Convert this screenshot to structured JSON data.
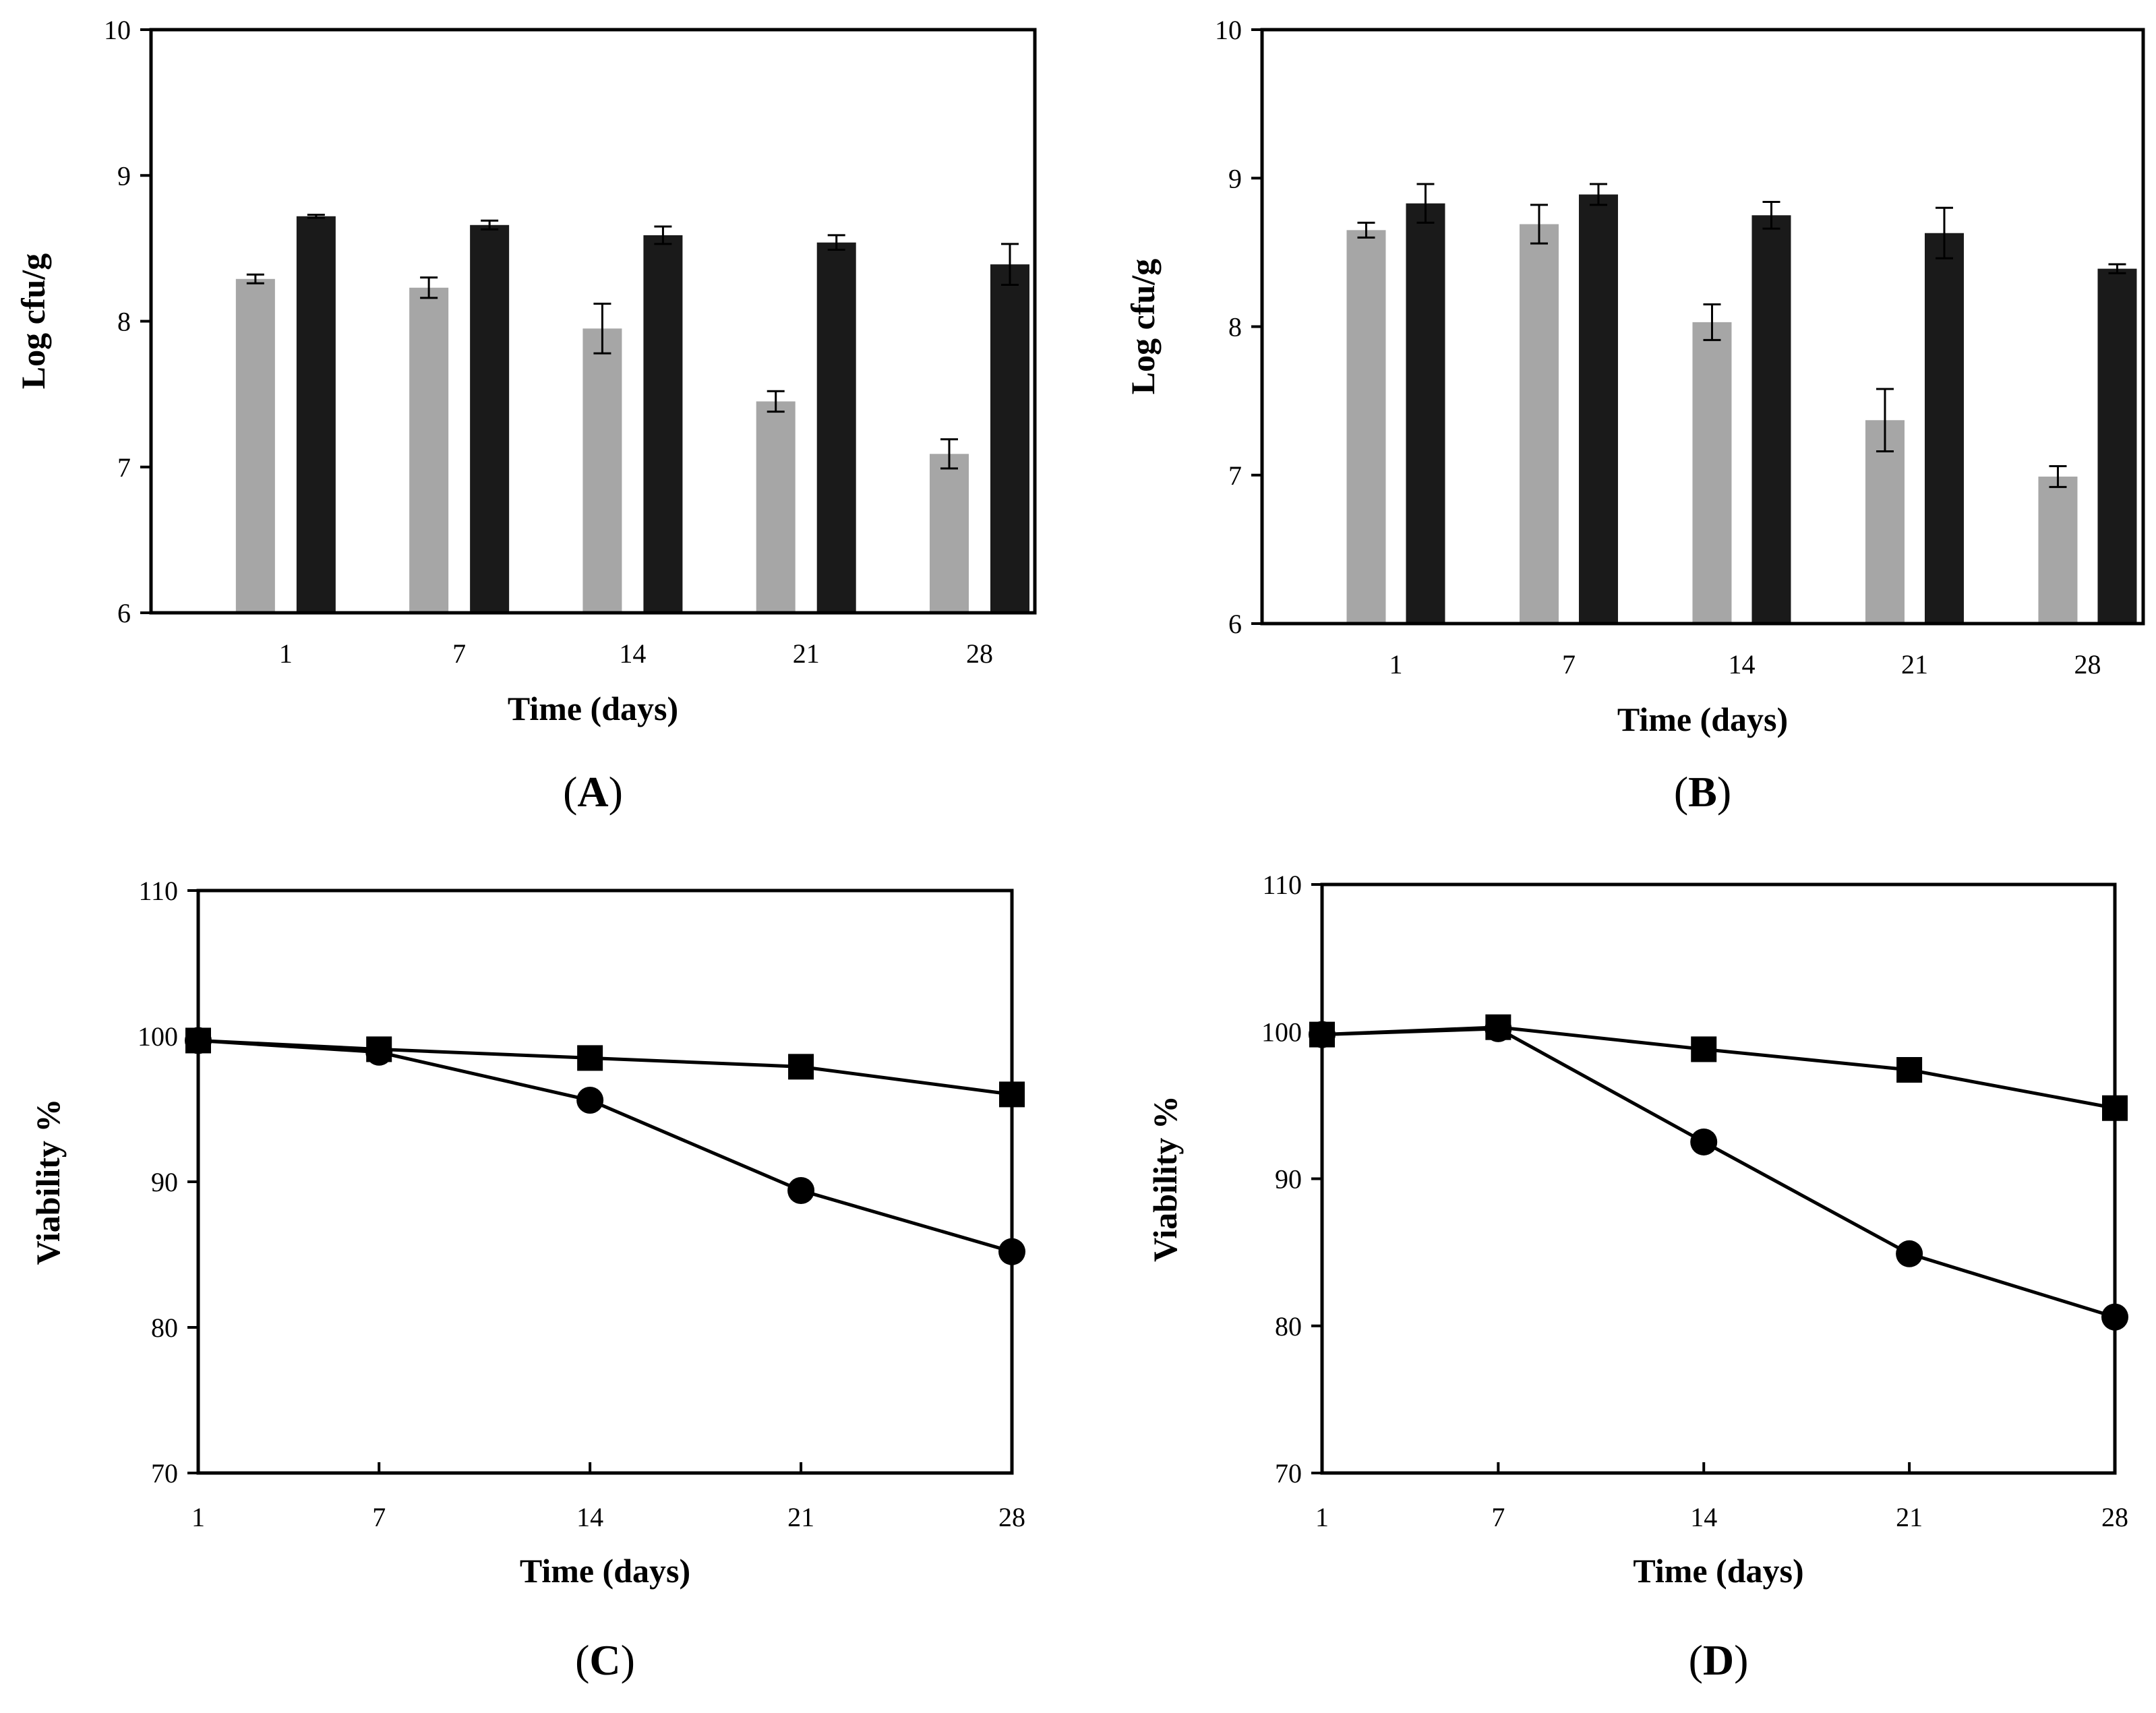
{
  "chart_data": [
    {
      "panel": "A",
      "type": "bar",
      "categories": [
        "1",
        "7",
        "14",
        "21",
        "28"
      ],
      "series": [
        {
          "name": "gray",
          "color": "#a6a6a6",
          "values": [
            8.29,
            8.23,
            7.95,
            7.45,
            7.09
          ],
          "errors": [
            0.03,
            0.07,
            0.17,
            0.07,
            0.1
          ]
        },
        {
          "name": "black",
          "color": "#1a1a1a",
          "values": [
            8.72,
            8.66,
            8.59,
            8.54,
            8.39
          ],
          "errors": [
            0.01,
            0.03,
            0.06,
            0.05,
            0.14
          ]
        }
      ],
      "xlabel": "Time (days)",
      "ylabel": "Log cfu/g",
      "ylim": [
        6,
        10
      ],
      "yticks": [
        "6",
        "7",
        "8",
        "9",
        "10"
      ],
      "caption_pre": "(",
      "caption_letter": "A",
      "caption_post": ")"
    },
    {
      "panel": "B",
      "type": "bar",
      "categories": [
        "1",
        "7",
        "14",
        "21",
        "28"
      ],
      "series": [
        {
          "name": "gray",
          "color": "#a6a6a6",
          "values": [
            8.65,
            8.69,
            8.03,
            7.37,
            6.99
          ],
          "errors": [
            0.05,
            0.13,
            0.12,
            0.21,
            0.07
          ]
        },
        {
          "name": "black",
          "color": "#1a1a1a",
          "values": [
            8.83,
            8.89,
            8.75,
            8.63,
            8.39
          ],
          "errors": [
            0.13,
            0.07,
            0.09,
            0.17,
            0.03
          ]
        }
      ],
      "xlabel": "Time (days)",
      "ylabel": "Log cfu/g",
      "ylim": [
        6,
        10
      ],
      "yticks": [
        "6",
        "7",
        "8",
        "9",
        "10"
      ],
      "caption_pre": "(",
      "caption_letter": "B",
      "caption_post": ")"
    },
    {
      "panel": "C",
      "type": "line",
      "x": [
        1,
        7,
        14,
        21,
        28
      ],
      "xticks": [
        "1",
        "7",
        "14",
        "21",
        "28"
      ],
      "series": [
        {
          "name": "squares",
          "marker": "square",
          "values": [
            99.7,
            99.1,
            98.5,
            97.9,
            96.0
          ]
        },
        {
          "name": "circles",
          "marker": "circle",
          "values": [
            99.7,
            98.9,
            95.6,
            89.4,
            85.2
          ]
        }
      ],
      "xlabel": "Time (days)",
      "ylabel": "Viability %",
      "ylim": [
        70,
        110
      ],
      "yticks": [
        "70",
        "80",
        "90",
        "100",
        "110"
      ],
      "caption_pre": "(",
      "caption_letter": "C",
      "caption_post": ")"
    },
    {
      "panel": "D",
      "type": "line",
      "x": [
        1,
        7,
        14,
        21,
        28
      ],
      "xticks": [
        "1",
        "7",
        "14",
        "21",
        "28"
      ],
      "series": [
        {
          "name": "squares",
          "marker": "square",
          "values": [
            99.8,
            100.3,
            98.8,
            97.4,
            94.8
          ]
        },
        {
          "name": "circles",
          "marker": "circle",
          "values": [
            99.8,
            100.2,
            92.5,
            84.9,
            80.6
          ]
        }
      ],
      "xlabel": "Time (days)",
      "ylabel": "Viability %",
      "ylim": [
        70,
        110
      ],
      "yticks": [
        "70",
        "80",
        "90",
        "100",
        "110"
      ],
      "caption_pre": "(",
      "caption_letter": "D",
      "caption_post": ")"
    }
  ]
}
